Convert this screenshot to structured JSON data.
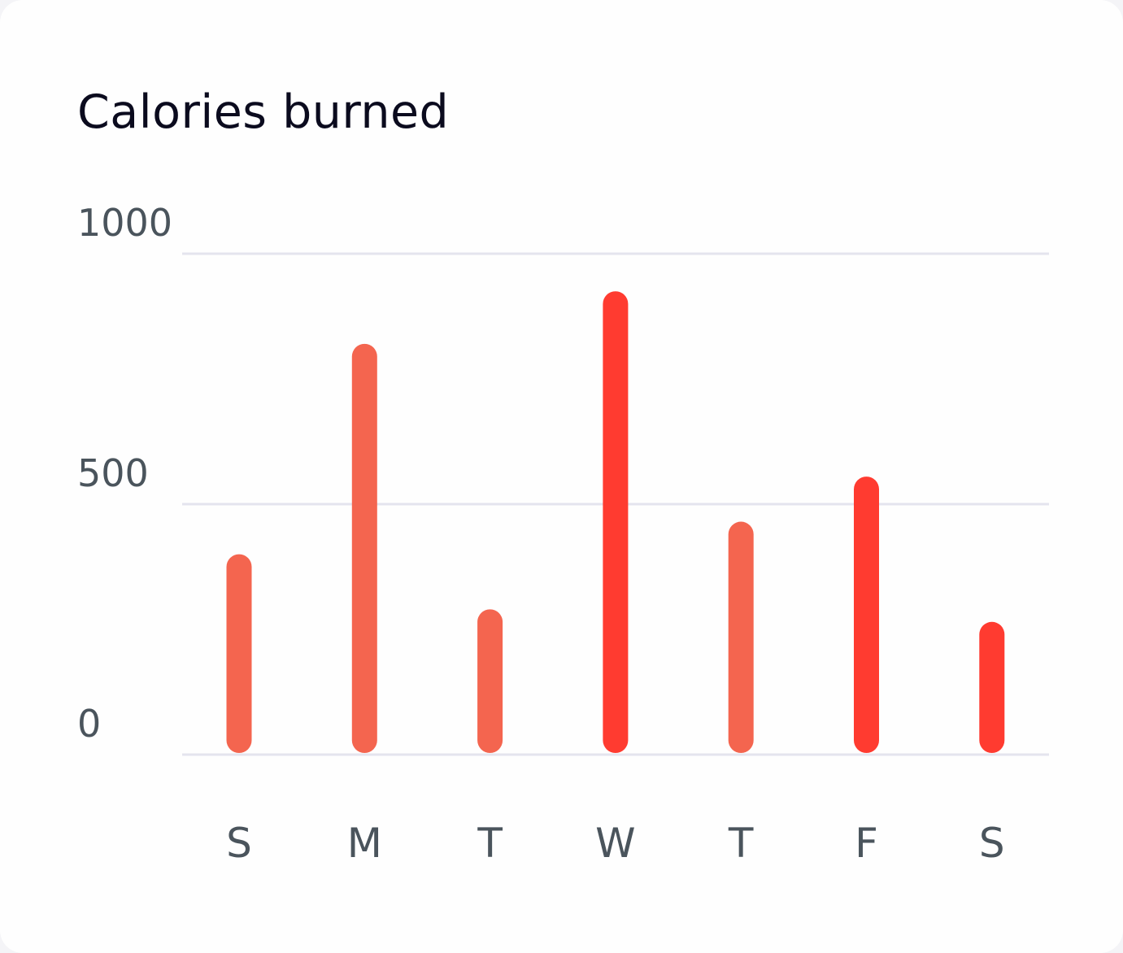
{
  "card": {
    "title": "Calories burned"
  },
  "chart_data": {
    "type": "bar",
    "title": "Calories burned",
    "xlabel": "",
    "ylabel": "",
    "categories": [
      "S",
      "M",
      "T",
      "W",
      "T",
      "F",
      "S"
    ],
    "values": [
      400,
      820,
      290,
      925,
      465,
      555,
      265
    ],
    "ylim": [
      0,
      1000
    ],
    "yticks": [
      0,
      500,
      1000
    ],
    "ytick_labels": [
      "0",
      "500",
      "1000"
    ],
    "grid": true,
    "legend": "none",
    "colors": {
      "primary": "#f4654f",
      "highlight": "#ff3b30",
      "gridline": "#e4e4ee",
      "text": "#4a545c",
      "title": "#0b0b1e"
    },
    "bar_color_keys": [
      "primary",
      "primary",
      "primary",
      "highlight",
      "primary",
      "highlight",
      "highlight"
    ]
  }
}
